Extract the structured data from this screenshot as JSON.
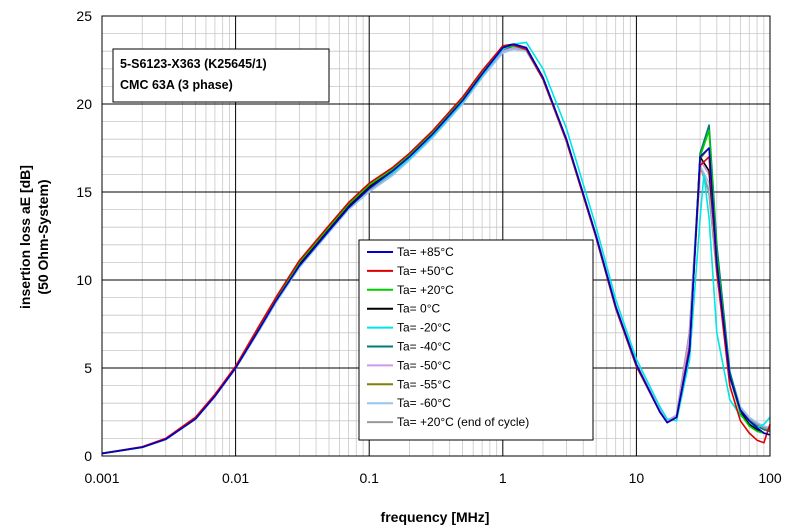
{
  "chart_data": {
    "type": "line",
    "title_lines": [
      "5-S6123-X363 (K25645/1)",
      "CMC 63A (3 phase)"
    ],
    "xlabel": "frequency [MHz]",
    "ylabel_lines": [
      "insertion loss  aE  [dB]",
      "(50 Ohm-System)"
    ],
    "xscale": "log",
    "xlim": [
      0.001,
      100
    ],
    "ylim": [
      0,
      25
    ],
    "x_ticks": [
      0.001,
      0.01,
      0.1,
      1,
      10,
      100
    ],
    "x_tick_labels": [
      "0.001",
      "0.01",
      "0.1",
      "1",
      "10",
      "100"
    ],
    "y_ticks": [
      0,
      5,
      10,
      15,
      20,
      25
    ],
    "y_tick_labels": [
      "0",
      "5",
      "10",
      "15",
      "20",
      "25"
    ],
    "grid": true,
    "legend_position": "center",
    "series": [
      {
        "name": "Ta= +85°C",
        "color": "#0000cc",
        "x": [
          0.001,
          0.002,
          0.003,
          0.005,
          0.007,
          0.01,
          0.015,
          0.02,
          0.03,
          0.05,
          0.07,
          0.1,
          0.15,
          0.2,
          0.3,
          0.5,
          0.7,
          1,
          1.2,
          1.5,
          2,
          3,
          5,
          7,
          10,
          15,
          17,
          20,
          25,
          30,
          35,
          40,
          50,
          60,
          70,
          80,
          90,
          100
        ],
        "y": [
          0.15,
          0.5,
          0.95,
          2.1,
          3.4,
          5.0,
          7.2,
          8.8,
          10.8,
          12.8,
          14.1,
          15.2,
          16.2,
          17.0,
          18.3,
          20.2,
          21.7,
          23.2,
          23.4,
          23.2,
          21.5,
          18.0,
          12.5,
          8.5,
          5.2,
          2.5,
          1.9,
          2.2,
          6.0,
          17.0,
          17.5,
          11.0,
          4.5,
          2.6,
          2.0,
          1.6,
          1.3,
          1.2
        ]
      },
      {
        "name": "Ta= +50°C",
        "color": "#dd0000",
        "x": [
          0.001,
          0.002,
          0.003,
          0.005,
          0.007,
          0.01,
          0.015,
          0.02,
          0.03,
          0.05,
          0.07,
          0.1,
          0.15,
          0.2,
          0.3,
          0.5,
          0.7,
          1,
          1.2,
          1.5,
          2,
          3,
          5,
          7,
          10,
          15,
          17,
          20,
          25,
          30,
          35,
          40,
          50,
          60,
          70,
          80,
          90,
          100
        ],
        "y": [
          0.15,
          0.52,
          1.0,
          2.2,
          3.5,
          5.1,
          7.4,
          9.0,
          11.1,
          13.1,
          14.4,
          15.5,
          16.4,
          17.2,
          18.5,
          20.4,
          21.9,
          23.3,
          23.35,
          23.1,
          21.4,
          17.9,
          12.4,
          8.4,
          5.1,
          2.5,
          1.9,
          2.2,
          6.2,
          16.5,
          17.0,
          10.5,
          4.0,
          2.0,
          1.3,
          0.9,
          0.75,
          1.8
        ]
      },
      {
        "name": "Ta= +20°C",
        "color": "#00cc00",
        "x": [
          0.001,
          0.002,
          0.003,
          0.005,
          0.007,
          0.01,
          0.015,
          0.02,
          0.03,
          0.05,
          0.07,
          0.1,
          0.15,
          0.2,
          0.3,
          0.5,
          0.7,
          1,
          1.2,
          1.5,
          2,
          3,
          5,
          7,
          10,
          15,
          17,
          20,
          25,
          30,
          35,
          40,
          50,
          60,
          70,
          80,
          90,
          100
        ],
        "y": [
          0.15,
          0.51,
          0.98,
          2.15,
          3.45,
          5.05,
          7.3,
          8.9,
          11.0,
          13.0,
          14.3,
          15.4,
          16.3,
          17.1,
          18.4,
          20.3,
          21.8,
          23.2,
          23.3,
          23.1,
          21.4,
          17.9,
          12.4,
          8.4,
          5.1,
          2.5,
          1.9,
          2.2,
          6.1,
          17.0,
          18.5,
          11.5,
          4.5,
          2.4,
          1.7,
          1.4,
          1.3,
          1.2
        ]
      },
      {
        "name": "Ta= 0°C",
        "color": "#000000",
        "x": [
          0.001,
          0.002,
          0.003,
          0.005,
          0.007,
          0.01,
          0.015,
          0.02,
          0.03,
          0.05,
          0.07,
          0.1,
          0.15,
          0.2,
          0.3,
          0.5,
          0.7,
          1,
          1.2,
          1.5,
          2,
          3,
          5,
          7,
          10,
          15,
          17,
          20,
          25,
          30,
          35,
          40,
          50,
          60,
          70,
          80,
          90,
          100
        ],
        "y": [
          0.15,
          0.5,
          0.97,
          2.12,
          3.42,
          5.02,
          7.25,
          8.85,
          10.9,
          12.9,
          14.2,
          15.3,
          16.25,
          17.05,
          18.35,
          20.25,
          21.75,
          23.3,
          23.4,
          23.2,
          21.5,
          17.95,
          12.45,
          8.45,
          5.15,
          2.5,
          1.9,
          2.2,
          6.0,
          17.0,
          16.2,
          11.0,
          4.5,
          2.5,
          1.8,
          1.5,
          1.3,
          1.2
        ]
      },
      {
        "name": "Ta= -20°C",
        "color": "#00e5e5",
        "x": [
          0.001,
          0.002,
          0.003,
          0.005,
          0.007,
          0.01,
          0.015,
          0.02,
          0.03,
          0.05,
          0.07,
          0.1,
          0.15,
          0.2,
          0.3,
          0.5,
          0.7,
          1,
          1.2,
          1.5,
          2,
          3,
          5,
          7,
          10,
          15,
          17,
          20,
          25,
          30,
          32,
          35,
          40,
          50,
          60,
          70,
          80,
          90,
          100
        ],
        "y": [
          0.15,
          0.5,
          0.95,
          2.1,
          3.4,
          5.0,
          7.2,
          8.8,
          10.8,
          12.8,
          14.1,
          15.2,
          16.1,
          16.9,
          18.2,
          20.1,
          21.6,
          23.1,
          23.4,
          23.5,
          22.0,
          18.6,
          13.0,
          8.9,
          5.5,
          2.8,
          2.1,
          2.0,
          5.5,
          13.5,
          16.0,
          13.5,
          7.0,
          3.2,
          2.3,
          1.9,
          1.6,
          1.8,
          2.2
        ]
      },
      {
        "name": "Ta= -40°C",
        "color": "#007a73",
        "x": [
          0.001,
          0.002,
          0.003,
          0.005,
          0.007,
          0.01,
          0.015,
          0.02,
          0.03,
          0.05,
          0.07,
          0.1,
          0.15,
          0.2,
          0.3,
          0.5,
          0.7,
          1,
          1.2,
          1.5,
          2,
          3,
          5,
          7,
          10,
          15,
          17,
          20,
          25,
          30,
          35,
          40,
          50,
          60,
          70,
          80,
          90,
          100
        ],
        "y": [
          0.15,
          0.5,
          0.96,
          2.1,
          3.4,
          5.0,
          7.2,
          8.8,
          10.8,
          12.8,
          14.1,
          15.2,
          16.15,
          16.95,
          18.25,
          20.15,
          21.65,
          23.1,
          23.3,
          23.2,
          21.5,
          17.9,
          12.4,
          8.4,
          5.1,
          2.5,
          1.9,
          2.2,
          6.2,
          17.2,
          18.8,
          12.0,
          4.8,
          2.6,
          2.0,
          1.7,
          1.5,
          1.4
        ]
      },
      {
        "name": "Ta= -50°C",
        "color": "#cc99ee",
        "x": [
          0.001,
          0.002,
          0.003,
          0.005,
          0.007,
          0.01,
          0.015,
          0.02,
          0.03,
          0.05,
          0.07,
          0.1,
          0.15,
          0.2,
          0.3,
          0.5,
          0.7,
          1,
          1.2,
          1.5,
          2,
          3,
          5,
          7,
          10,
          15,
          17,
          20,
          25,
          30,
          35,
          40,
          50,
          60,
          70,
          80,
          90,
          100
        ],
        "y": [
          0.15,
          0.5,
          0.96,
          2.1,
          3.4,
          5.0,
          7.2,
          8.8,
          10.8,
          12.8,
          14.1,
          15.2,
          16.1,
          16.9,
          18.2,
          20.1,
          21.6,
          23.0,
          23.2,
          23.1,
          21.5,
          17.9,
          12.5,
          8.5,
          5.2,
          2.6,
          2.0,
          2.3,
          6.8,
          16.8,
          16.0,
          11.0,
          4.6,
          2.6,
          2.0,
          1.7,
          1.5,
          1.4
        ]
      },
      {
        "name": "Ta= -55°C",
        "color": "#808000",
        "x": [
          0.001,
          0.002,
          0.003,
          0.005,
          0.007,
          0.01,
          0.015,
          0.02,
          0.03,
          0.05,
          0.07,
          0.1,
          0.15,
          0.2,
          0.3,
          0.5,
          0.7,
          1,
          1.2,
          1.5,
          2,
          3,
          5,
          7,
          10,
          15,
          17,
          20,
          25,
          30,
          35,
          40,
          50,
          60,
          70,
          80,
          90,
          100
        ],
        "y": [
          0.15,
          0.5,
          0.96,
          2.1,
          3.4,
          5.0,
          7.2,
          8.8,
          10.8,
          12.8,
          14.1,
          15.2,
          16.1,
          16.9,
          18.2,
          20.1,
          21.6,
          23.05,
          23.25,
          23.15,
          21.5,
          17.9,
          12.45,
          8.45,
          5.15,
          2.55,
          1.95,
          2.25,
          6.5,
          16.9,
          17.5,
          11.2,
          4.6,
          2.6,
          2.0,
          1.7,
          1.5,
          1.4
        ]
      },
      {
        "name": "Ta= -60°C",
        "color": "#99c4ee",
        "x": [
          0.001,
          0.002,
          0.003,
          0.005,
          0.007,
          0.01,
          0.015,
          0.02,
          0.03,
          0.05,
          0.07,
          0.1,
          0.15,
          0.2,
          0.3,
          0.5,
          0.7,
          1,
          1.2,
          1.5,
          2,
          3,
          5,
          7,
          10,
          15,
          17,
          20,
          25,
          30,
          35,
          40,
          50,
          60,
          70,
          80,
          90,
          100
        ],
        "y": [
          0.15,
          0.5,
          0.95,
          2.1,
          3.4,
          5.0,
          7.1,
          8.7,
          10.7,
          12.7,
          14.0,
          15.0,
          15.95,
          16.8,
          18.1,
          20.0,
          21.5,
          22.9,
          23.1,
          23.0,
          21.4,
          17.9,
          12.5,
          8.5,
          5.2,
          2.6,
          2.0,
          2.3,
          6.8,
          16.5,
          15.5,
          10.8,
          4.8,
          2.8,
          2.2,
          1.9,
          1.7,
          1.6
        ]
      },
      {
        "name": "Ta= +20°C (end of cycle)",
        "color": "#999999",
        "x": [
          0.001,
          0.002,
          0.003,
          0.005,
          0.007,
          0.01,
          0.015,
          0.02,
          0.03,
          0.05,
          0.07,
          0.1,
          0.15,
          0.2,
          0.3,
          0.5,
          0.7,
          1,
          1.2,
          1.5,
          2,
          3,
          5,
          7,
          10,
          15,
          17,
          20,
          25,
          30,
          35,
          40,
          50,
          60,
          70,
          80,
          90,
          100
        ],
        "y": [
          0.15,
          0.5,
          0.95,
          2.1,
          3.4,
          5.0,
          7.15,
          8.75,
          10.75,
          12.75,
          14.05,
          15.1,
          16.0,
          16.85,
          18.15,
          20.05,
          21.55,
          22.95,
          23.15,
          23.05,
          21.45,
          17.9,
          12.5,
          8.5,
          5.2,
          2.6,
          2.0,
          2.3,
          7.0,
          16.5,
          15.0,
          10.5,
          4.7,
          2.7,
          2.1,
          1.8,
          1.6,
          1.5
        ]
      }
    ]
  }
}
